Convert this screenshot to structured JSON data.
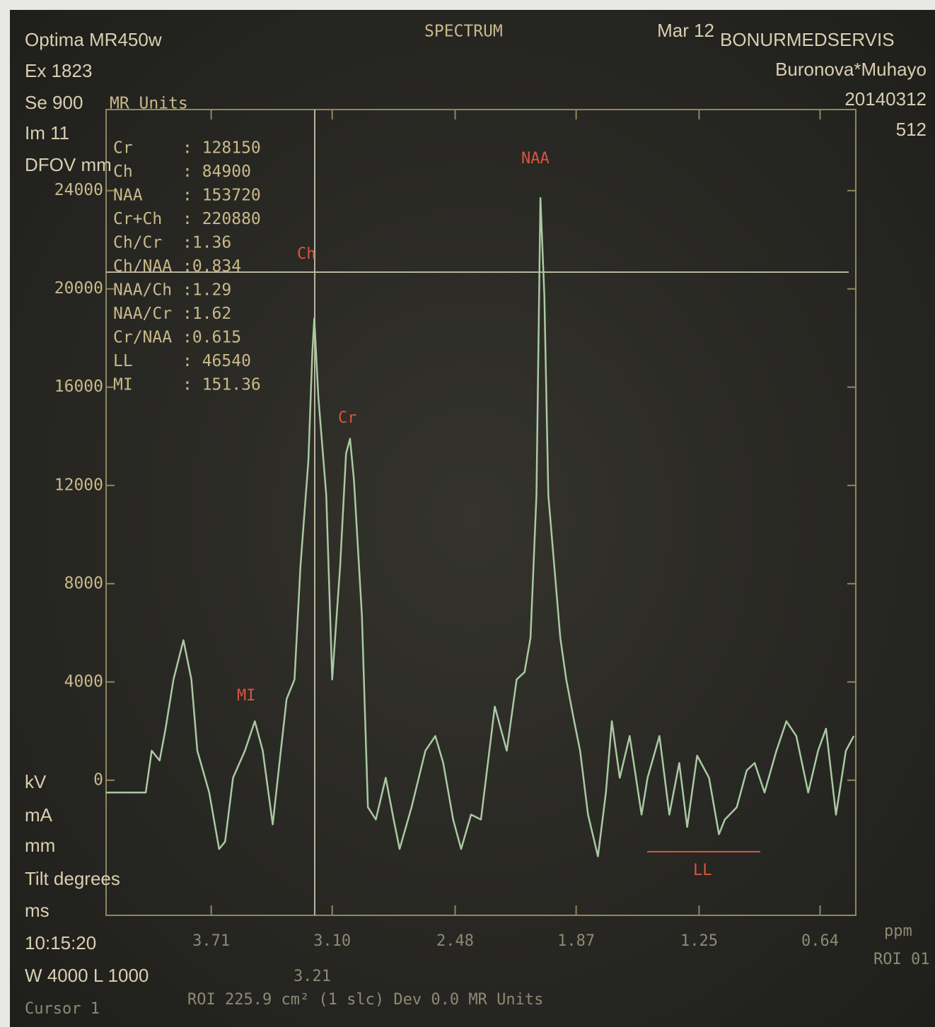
{
  "screen": {
    "header_left": [
      "Optima MR450w",
      "Ex 1823",
      "Se 900",
      "Im 11",
      "DFOV mm"
    ],
    "units": "MR Units",
    "header_right": [
      "Mar 12",
      "BONURMEDSERVIS",
      "Buronova*Muhayo",
      "20140312",
      "512"
    ],
    "metabolites": [
      [
        "Cr",
        ": 128150"
      ],
      [
        "Ch",
        ": 84900"
      ],
      [
        "NAA",
        ": 153720"
      ],
      [
        "Cr+Ch",
        ": 220880"
      ],
      [
        "Ch/Cr",
        ":1.36"
      ],
      [
        "Ch/NAA",
        ":0.834"
      ],
      [
        "NAA/Ch",
        ":1.29"
      ],
      [
        "NAA/Cr",
        ":1.62"
      ],
      [
        "Cr/NAA",
        ":0.615"
      ],
      [
        "LL",
        ": 46540"
      ],
      [
        "MI",
        ": 151.36"
      ]
    ],
    "footer_left": [
      "kV",
      "mA",
      "mm",
      "Tilt degrees",
      "ms",
      "10:15:20",
      "W 4000 L 1000"
    ],
    "cursor_readout": "3.21",
    "status": "Cursor 1",
    "roi": "ROI 225.9 cm² (1 slc)   Dev 0.0 MR Units",
    "roi_right": "ROI 01"
  },
  "chart_data": {
    "type": "line",
    "title": "SPECTRUM",
    "x_label": "ppm",
    "annotations": [
      "MI",
      "Ch",
      "Cr",
      "NAA",
      "LL"
    ],
    "x": [
      4.24,
      4.04,
      4.01,
      3.97,
      3.94,
      3.9,
      3.85,
      3.81,
      3.78,
      3.72,
      3.67,
      3.64,
      3.6,
      3.54,
      3.49,
      3.45,
      3.4,
      3.37,
      3.33,
      3.29,
      3.26,
      3.22,
      3.2,
      3.19,
      3.17,
      3.13,
      3.1,
      3.06,
      3.03,
      3.01,
      2.99,
      2.95,
      2.92,
      2.88,
      2.83,
      2.79,
      2.76,
      2.7,
      2.63,
      2.58,
      2.54,
      2.49,
      2.45,
      2.4,
      2.35,
      2.28,
      2.22,
      2.17,
      2.13,
      2.1,
      2.07,
      2.05,
      2.03,
      2.01,
      1.95,
      1.92,
      1.88,
      1.85,
      1.81,
      1.76,
      1.72,
      1.69,
      1.65,
      1.6,
      1.54,
      1.51,
      1.45,
      1.4,
      1.35,
      1.31,
      1.26,
      1.2,
      1.15,
      1.12,
      1.06,
      1.01,
      0.97,
      0.92,
      0.86,
      0.81,
      0.76,
      0.7,
      0.65,
      0.61,
      0.56,
      0.51,
      0.47
    ],
    "series": [
      {
        "color": "#a9c9a2",
        "values": [
          -500,
          -500,
          1200,
          800,
          2100,
          4100,
          5700,
          4100,
          1200,
          -500,
          -2800,
          -2500,
          100,
          1200,
          2400,
          1200,
          -1800,
          400,
          3300,
          4100,
          8700,
          13000,
          17400,
          18800,
          15600,
          11600,
          4100,
          8700,
          13300,
          13900,
          12200,
          6700,
          -1100,
          -1600,
          100,
          -1600,
          -2800,
          -1100,
          1200,
          1800,
          700,
          -1600,
          -2800,
          -1400,
          -1600,
          3000,
          1200,
          4100,
          4400,
          5800,
          11600,
          23700,
          19700,
          11600,
          5800,
          4100,
          2400,
          1200,
          -1400,
          -3100,
          -500,
          2400,
          100,
          1800,
          -1400,
          100,
          1800,
          -1400,
          700,
          -1900,
          1000,
          100,
          -2200,
          -1600,
          -1100,
          400,
          700,
          -500,
          1200,
          2400,
          1800,
          -500,
          1200,
          2100,
          -1400,
          1200,
          1800
        ]
      }
    ],
    "xlim": [
      4.24,
      0.46
    ],
    "xticks": [
      3.71,
      {
        "value": 3.1,
        "label": "3.10"
      },
      2.48,
      1.87,
      1.25,
      0.64
    ],
    "ylim": [
      -5500,
      27300
    ],
    "yticks": [
      0,
      4000,
      8000,
      12000,
      16000,
      20000,
      24000
    ]
  }
}
